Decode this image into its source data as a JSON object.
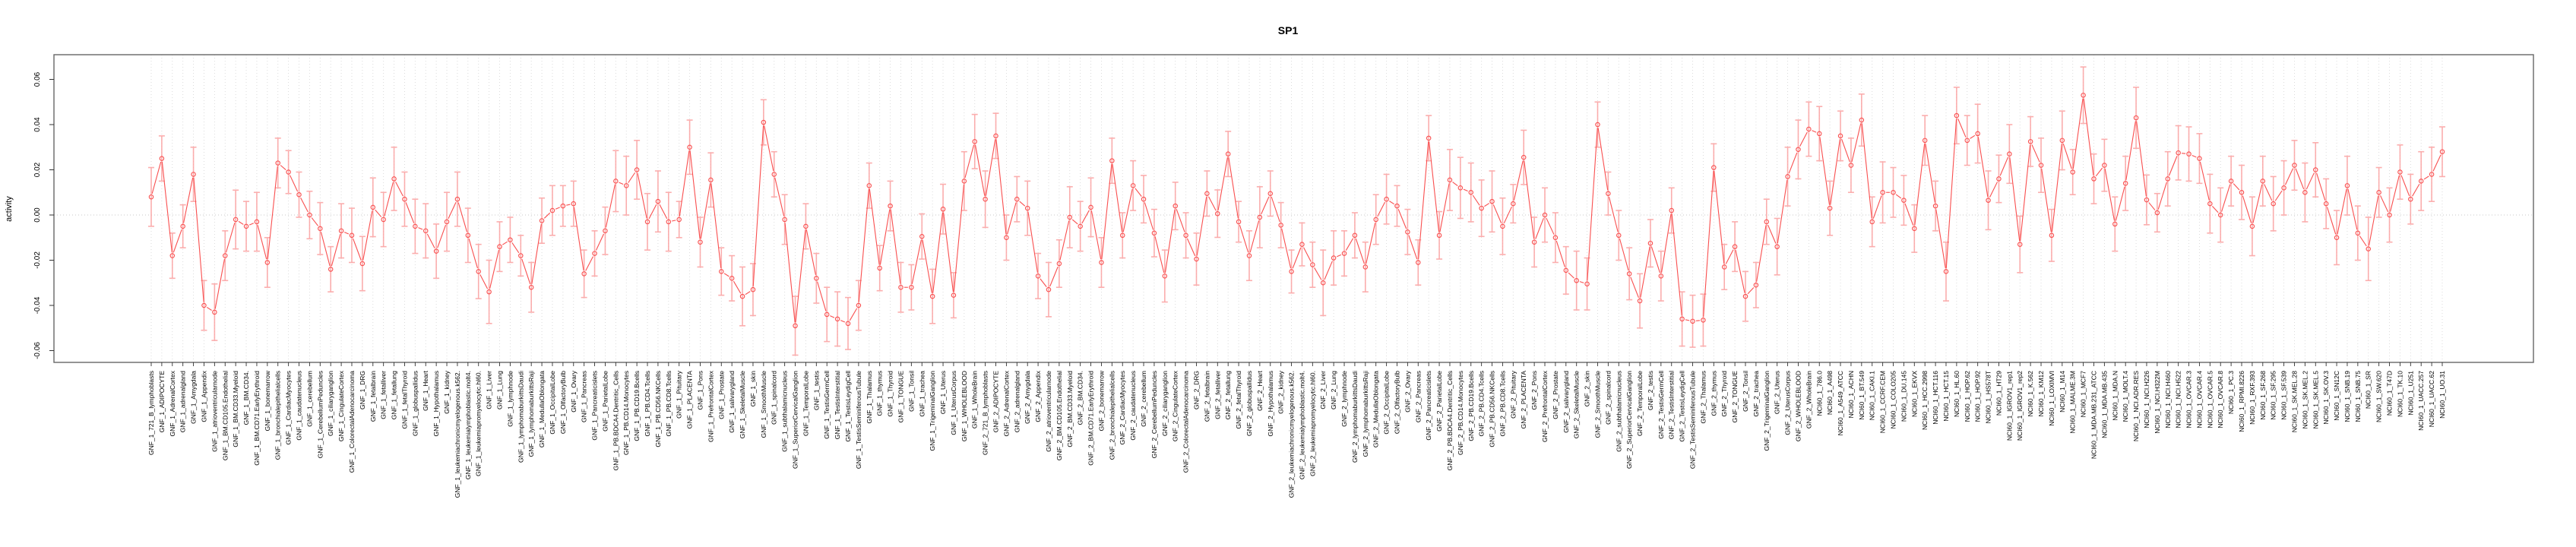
{
  "title": "SP1",
  "ylabel": "activity",
  "chart_data": {
    "type": "line",
    "title": "SP1",
    "xlabel": "",
    "ylabel": "activity",
    "ylim": [
      -0.065,
      0.068
    ],
    "yticks": [
      0.06,
      0.04,
      0.02,
      0.0,
      -0.02,
      -0.04,
      -0.06
    ],
    "ytick_labels": [
      "0.06",
      "0.04",
      "0.02",
      "0.00",
      "-0.02",
      "-0.04",
      "-0.06"
    ],
    "grid": "vertical dotted gridline at every category; dotted horizontal line at y=0",
    "legend": "none",
    "marker": "open-circle",
    "series_color": "#f94f4f",
    "errorbar_color": "#fba0a0",
    "gridline_color": "#d8d8d8",
    "box_color": "#666666",
    "categories": [
      "GNF_1_721_B_lymphoblasts",
      "GNF_1_ADIPOCYTE",
      "GNF_1_AdrenalCortex",
      "GNF_1_adrenalgland",
      "GNF_1_Amygdala",
      "GNF_1_Appendix",
      "GNF_1_atrioventricularnode",
      "GNF_1_BM.CD105.Endothelial",
      "GNF_1_BM.CD33.Myeloid",
      "GNF_1_BM.CD34.",
      "GNF_1_BM.CD71.EarlyErythroid",
      "GNF_1_bonemarrow",
      "GNF_1_bronchialepithelialcells",
      "GNF_1_CardiacMyocytes",
      "GNF_1_caudatenucleus",
      "GNF_1_cerebellum",
      "GNF_1_CerebellumPeduncles",
      "GNF_1_ciliaryganglion",
      "GNF_1_CingulateCortex",
      "GNF_1_ColorectalAdenocarcinoma",
      "GNF_1_DRG",
      "GNF_1_fetalbrain",
      "GNF_1_fetalliver",
      "GNF_1_fetallung",
      "GNF_1_fetalThyroid",
      "GNF_1_globuspallidus",
      "GNF_1_Heart",
      "GNF_1_Hypothalamus",
      "GNF_1_kidney",
      "GNF_1_leukemiachronicmyelogenous.k562.",
      "GNF_1_leukemialymphoblastic.molt4.",
      "GNF_1_leukemiapromyelocytic.hl60.",
      "GNF_1_Liver",
      "GNF_1_Lung",
      "GNF_1_lymphnode",
      "GNF_1_lymphomaburkittsDaudi",
      "GNF_1_lymphomaburkittsRaji",
      "GNF_1_MedullaOblongata",
      "GNF_1_OccipitalLobe",
      "GNF_1_OlfactoryBulb",
      "GNF_1_Ovary",
      "GNF_1_Pancreas",
      "GNF_1_Pancreaticislets",
      "GNF_1_ParietalLobe",
      "GNF_1_PB.BDCA4.Dentritic_Cells",
      "GNF_1_PB.CD14.Monocytes",
      "GNF_1_PB.CD19.Bcells",
      "GNF_1_PB.CD4.Tcells",
      "GNF_1_PB.CD56.NKCells",
      "GNF_1_PB.CD8.Tcells",
      "GNF_1_Pituitary",
      "GNF_1_PLACENTA",
      "GNF_1_Pons",
      "GNF_1_PrefrontalCortex",
      "GNF_1_Prostate",
      "GNF_1_salivarygland",
      "GNF_1_SkeletalMuscle",
      "GNF_1_skin",
      "GNF_1_SmoothMuscle",
      "GNF_1_spinalcord",
      "GNF_1_subthalamicnucleus",
      "GNF_1_SuperiorCervicalGanglion",
      "GNF_1_TemporalLobe",
      "GNF_1_testis",
      "GNF_1_TestisGermCell",
      "GNF_1_TestisInterstitial",
      "GNF_1_TestisLeydigCell",
      "GNF_1_TestisSeminiferousTubule",
      "GNF_1_Thalamus",
      "GNF_1_thymus",
      "GNF_1_Thyroid",
      "GNF_1_TONGUE",
      "GNF_1_Tonsil",
      "GNF_1_trachea",
      "GNF_1_TrigeminalGanglion",
      "GNF_1_Uterus",
      "GNF_1_UterusCorpus",
      "GNF_1_WHOLEBLOOD",
      "GNF_1_WholeBrain",
      "GNF_2_721_B_lymphoblasts",
      "GNF_2_ADIPOCYTE",
      "GNF_2_AdrenalCortex",
      "GNF_2_adrenalgland",
      "GNF_2_Amygdala",
      "GNF_2_Appendix",
      "GNF_2_atrioventricularnode",
      "GNF_2_BM.CD105.Endothelial",
      "GNF_2_BM.CD33.Myeloid",
      "GNF_2_BM.CD34.",
      "GNF_2_BM.CD71.EarlyErythroid",
      "GNF_2_bonemarrow",
      "GNF_2_bronchialepithelialcells",
      "GNF_2_CardiacMyocytes",
      "GNF_2_caudatenucleus",
      "GNF_2_cerebellum",
      "GNF_2_CerebellumPeduncles",
      "GNF_2_ciliaryganglion",
      "GNF_2_CingulateCortex",
      "GNF_2_ColorectalAdenocarcinoma",
      "GNF_2_DRG",
      "GNF_2_fetalbrain",
      "GNF_2_fetalliver",
      "GNF_2_fetallung",
      "GNF_2_fetalThyroid",
      "GNF_2_globuspallidus",
      "GNF_2_Heart",
      "GNF_2_Hypothalamus",
      "GNF_2_kidney",
      "GNF_2_leukemiachronicmyelogenous.k562.",
      "GNF_2_leukemialymphoblastic.molt4.",
      "GNF_2_leukemiapromyelocytic.hl60.",
      "GNF_2_Liver",
      "GNF_2_Lung",
      "GNF_2_lymphnode",
      "GNF_2_lymphomaburkittsDaudi",
      "GNF_2_lymphomaburkittsRaji",
      "GNF_2_MedullaOblongata",
      "GNF_2_OccipitalLobe",
      "GNF_2_OlfactoryBulb",
      "GNF_2_Ovary",
      "GNF_2_Pancreas",
      "GNF_2_Pancreaticislets",
      "GNF_2_ParietalLobe",
      "GNF_2_PB.BDCA4.Dentritic_Cells",
      "GNF_2_PB.CD14.Monocytes",
      "GNF_2_PB.CD19.Bcells",
      "GNF_2_PB.CD4.Tcells",
      "GNF_2_PB.CD56.NKCells",
      "GNF_2_PB.CD8.Tcells",
      "GNF_2_Pituitary",
      "GNF_2_PLACENTA",
      "GNF_2_Pons",
      "GNF_2_PrefrontalCortex",
      "GNF_2_Prostate",
      "GNF_2_salivarygland",
      "GNF_2_SkeletalMuscle",
      "GNF_2_skin",
      "GNF_2_SmoothMuscle",
      "GNF_2_spinalcord",
      "GNF_2_subthalamicnucleus",
      "GNF_2_SuperiorCervicalGanglion",
      "GNF_2_TemporalLobe",
      "GNF_2_testis",
      "GNF_2_TestisGermCell",
      "GNF_2_TestisInterstitial",
      "GNF_2_TestisLeydigCell",
      "GNF_2_TestisSeminiferousTubule",
      "GNF_2_Thalamus",
      "GNF_2_thymus",
      "GNF_2_Thyroid",
      "GNF_2_TONGUE",
      "GNF_2_Tonsil",
      "GNF_2_trachea",
      "GNF_2_TrigeminalGanglion",
      "GNF_2_Uterus",
      "GNF_2_UterusCorpus",
      "GNF_2_WHOLEBLOOD",
      "GNF_2_WholeBrain",
      "NCI60_1_786.0",
      "NCI60_1_A498",
      "NCI60_1_A549_ATCC",
      "NCI60_1_ACHN",
      "NCI60_1_BT.549",
      "NCI60_1_CAKI.1",
      "NCI60_1_CCRF.CEM",
      "NCI60_1_COLO205",
      "NCI60_1_DU.145",
      "NCI60_1_EKVX",
      "NCI60_1_HCC.2998",
      "NCI60_1_HCT.116",
      "NCI60_1_HCT.15",
      "NCI60_1_HL.60",
      "NCI60_1_HOP.62",
      "NCI60_1_HOP.92",
      "NCI60_1_HS578T",
      "NCI60_1_HT29",
      "NCI60_1_IGROV1_rep1",
      "NCI60_1_IGROV1_rep2",
      "NCI60_1_K.562",
      "NCI60_1_KM12",
      "NCI60_1_LOXIMVI",
      "NCI60_1_M14",
      "NCI60_1_MALME.3M",
      "NCI60_1_MCF7",
      "NCI60_1_MDA.MB.231_ATCC",
      "NCI60_1_MDA.MB.435",
      "NCI60_1_MDA.N",
      "NCI60_1_MOLT.4",
      "NCI60_1_NCI.ADR.RES",
      "NCI60_1_NCI.H226",
      "NCI60_1_NCI.H322M",
      "NCI60_1_NCI.H460",
      "NCI60_1_NCI.H522",
      "NCI60_1_OVCAR.3",
      "NCI60_1_OVCAR.4",
      "NCI60_1_OVCAR.5",
      "NCI60_1_OVCAR.8",
      "NCI60_1_PC.3",
      "NCI60_1_RPMI.8226",
      "NCI60_1_RXF.393",
      "NCI60_1_SF.268",
      "NCI60_1_SF.295",
      "NCI60_1_SF.539",
      "NCI60_1_SK.MEL.28",
      "NCI60_1_SK.MEL.2",
      "NCI60_1_SK.MEL.5",
      "NCI60_1_SK.OV.3",
      "NCI60_1_SN12C",
      "NCI60_1_SNB.19",
      "NCI60_1_SNB.75",
      "NCI60_1_SR",
      "NCI60_1_SW.620",
      "NCI60_1_T47D",
      "NCI60_1_TK.10",
      "NCI60_1_U251",
      "NCI60_1_UACC.257",
      "NCI60_1_UACC.62",
      "NCI60_1_UO.31"
    ],
    "values": [
      0.008,
      0.025,
      -0.018,
      -0.005,
      0.018,
      -0.04,
      -0.043,
      -0.018,
      -0.002,
      -0.005,
      -0.003,
      -0.021,
      0.023,
      0.019,
      0.009,
      0,
      -0.006,
      -0.024,
      -0.007,
      -0.009,
      -0.0215,
      0.0034,
      -0.002,
      0.016,
      0.007,
      -0.005,
      -0.007,
      -0.016,
      -0.003,
      0.007,
      -0.009,
      -0.025,
      -0.034,
      -0.014,
      -0.011,
      -0.018,
      -0.032,
      -0.0025,
      0.002,
      0.004,
      0.005,
      -0.026,
      -0.017,
      -0.007,
      0.015,
      0.013,
      0.02,
      -0.003,
      0.006,
      -0.003,
      -0.002,
      0.03,
      -0.012,
      0.0155,
      -0.025,
      -0.028,
      -0.036,
      -0.033,
      0.041,
      0.018,
      -0.002,
      -0.049,
      -0.005,
      -0.028,
      -0.044,
      -0.046,
      -0.048,
      -0.04,
      0.013,
      -0.0235,
      0.004,
      -0.032,
      -0.032,
      -0.0095,
      -0.036,
      0.0026,
      -0.0355,
      0.015,
      0.0325,
      0.007,
      0.035,
      -0.01,
      0.007,
      0.003,
      -0.027,
      -0.033,
      -0.0215,
      -0.001,
      -0.005,
      0.0034,
      -0.021,
      0.024,
      -0.009,
      0.013,
      0.007,
      -0.008,
      -0.027,
      0.004,
      -0.009,
      -0.0195,
      0.0095,
      0.0006,
      0.027,
      -0.003,
      -0.018,
      -0.001,
      0.0095,
      -0.0045,
      -0.025,
      -0.013,
      -0.022,
      -0.03,
      -0.019,
      -0.017,
      -0.009,
      -0.023,
      -0.002,
      0.007,
      0.004,
      -0.0075,
      -0.021,
      0.034,
      -0.009,
      0.0155,
      0.012,
      0.01,
      0.003,
      0.006,
      -0.005,
      0.005,
      0.0255,
      -0.012,
      0,
      -0.01,
      -0.0245,
      -0.029,
      -0.0305,
      0.04,
      0.0095,
      -0.009,
      -0.026,
      -0.038,
      -0.0125,
      -0.027,
      0.002,
      -0.046,
      -0.047,
      -0.0465,
      0.021,
      -0.023,
      -0.014,
      -0.036,
      -0.031,
      -0.003,
      -0.014,
      0.017,
      0.029,
      0.038,
      0.036,
      0.003,
      0.035,
      0.022,
      0.042,
      -0.003,
      0.01,
      0.01,
      0.0065,
      -0.006,
      0.033,
      0.004,
      -0.025,
      0.044,
      0.033,
      0.036,
      0.0065,
      0.016,
      0.027,
      -0.013,
      0.0325,
      0.022,
      -0.009,
      0.033,
      0.019,
      0.053,
      0.016,
      0.022,
      -0.004,
      0.014,
      0.043,
      0.0067,
      0.001,
      0.016,
      0.0275,
      0.027,
      0.025,
      0.005,
      0,
      0.015,
      0.01,
      -0.005,
      0.015,
      0.005,
      0.012,
      0.022,
      0.01,
      0.02,
      0.005,
      -0.01,
      0.013,
      -0.008,
      -0.015,
      0.01,
      0,
      0.019,
      0.007,
      0.015,
      0.018,
      0.028
    ],
    "errors": [
      0.013,
      0.01,
      0.01,
      0.0095,
      0.012,
      0.011,
      0.0125,
      0.011,
      0.013,
      0.011,
      0.013,
      0.011,
      0.011,
      0.0095,
      0.01,
      0.0105,
      0.0115,
      0.01,
      0.012,
      0.012,
      0.012,
      0.013,
      0.012,
      0.014,
      0.012,
      0.012,
      0.012,
      0.012,
      0.013,
      0.012,
      0.012,
      0.012,
      0.014,
      0.011,
      0.01,
      0.009,
      0.011,
      0.01,
      0.011,
      0.009,
      0.01,
      0.0105,
      0.01,
      0.0105,
      0.0135,
      0.013,
      0.013,
      0.0125,
      0.0135,
      0.013,
      0.008,
      0.012,
      0.011,
      0.012,
      0.0105,
      0.01,
      0.013,
      0.0115,
      0.01,
      0.01,
      0.011,
      0.013,
      0.01,
      0.011,
      0.012,
      0.012,
      0.0115,
      0.011,
      0.01,
      0.01,
      0.011,
      0.011,
      0.01,
      0.01,
      0.012,
      0.011,
      0.01,
      0.013,
      0.012,
      0.0125,
      0.01,
      0.01,
      0.01,
      0.012,
      0.01,
      0.012,
      0.0105,
      0.0135,
      0.011,
      0.013,
      0.011,
      0.01,
      0.01,
      0.011,
      0.0105,
      0.0105,
      0.0115,
      0.0105,
      0.01,
      0.0115,
      0.01,
      0.0105,
      0.01,
      0.009,
      0.011,
      0.0135,
      0.01,
      0.01,
      0.0095,
      0.0095,
      0.01,
      0.0145,
      0.012,
      0.01,
      0.01,
      0.011,
      0.011,
      0.011,
      0.009,
      0.01,
      0.01,
      0.01,
      0.0105,
      0.0135,
      0.0135,
      0.013,
      0.0125,
      0.0135,
      0.0125,
      0.0085,
      0.012,
      0.011,
      0.012,
      0.011,
      0.0105,
      0.013,
      0.0115,
      0.01,
      0.0095,
      0.011,
      0.0115,
      0.012,
      0.0105,
      0.011,
      0.01,
      0.012,
      0.0115,
      0.0115,
      0.0105,
      0.01,
      0.011,
      0.011,
      0.01,
      0.01,
      0.0125,
      0.013,
      0.013,
      0.012,
      0.012,
      0.012,
      0.011,
      0.012,
      0.0115,
      0.011,
      0.0135,
      0.011,
      0.011,
      0.0105,
      0.011,
      0.011,
      0.013,
      0.0125,
      0.011,
      0.013,
      0.013,
      0.0105,
      0.013,
      0.0125,
      0.011,
      0.012,
      0.0115,
      0.013,
      0.01,
      0.0125,
      0.011,
      0.0115,
      0.012,
      0.012,
      0.0135,
      0.011,
      0.0085,
      0.012,
      0.012,
      0.012,
      0.011,
      0.013,
      0.012,
      0.011,
      0.012,
      0.013,
      0.011,
      0.012,
      0.012,
      0.011,
      0.013,
      0.012,
      0.011,
      0.012,
      0.013,
      0.012,
      0.014,
      0.011,
      0.012,
      0.012,
      0.011,
      0.013,
      0.012,
      0.011
    ]
  }
}
